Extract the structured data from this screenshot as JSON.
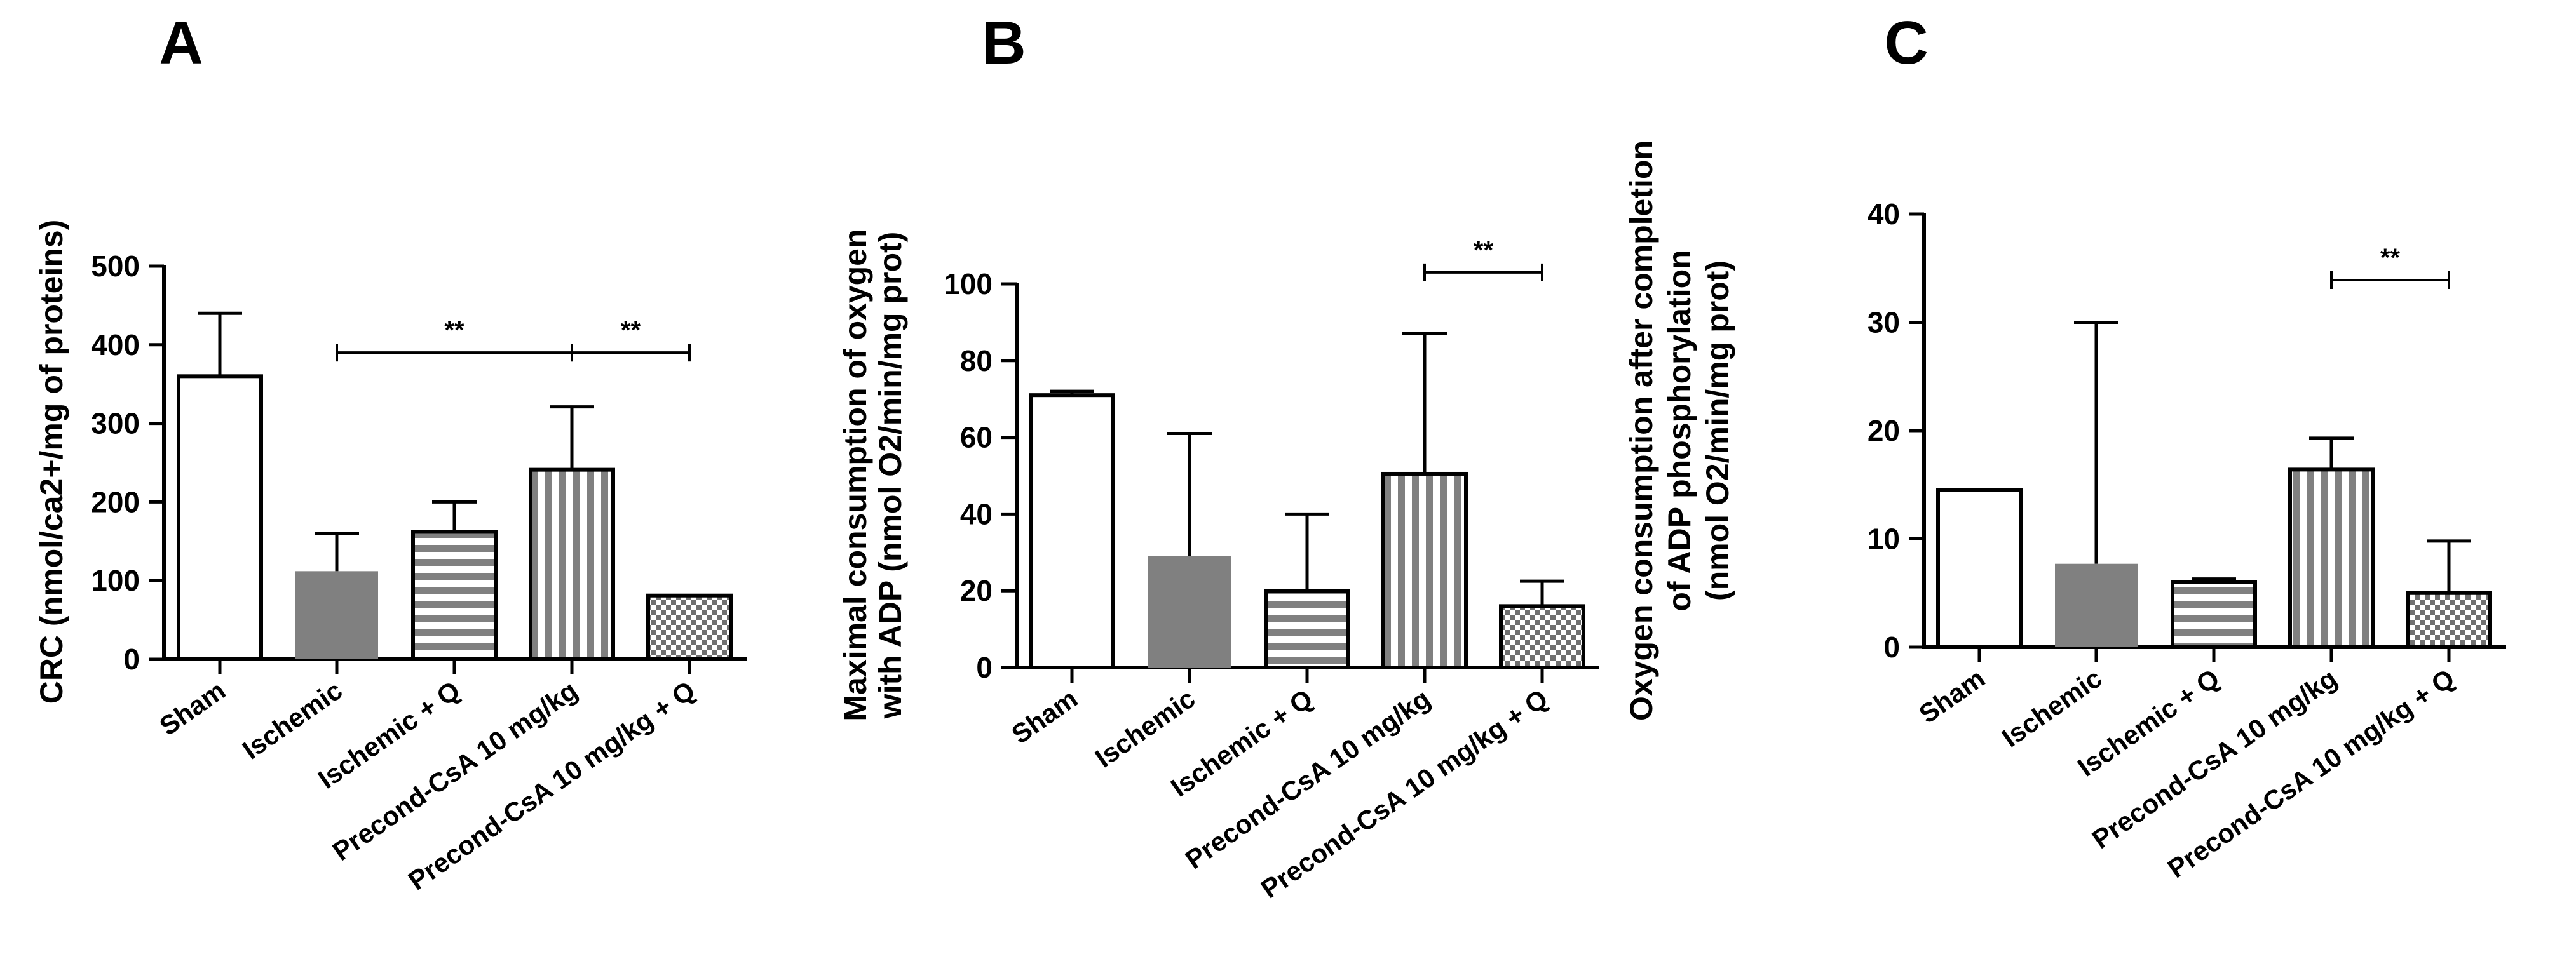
{
  "colors": {
    "axis": "#000000",
    "filled": "#808080",
    "white": "#ffffff"
  },
  "chart_data": [
    {
      "type": "bar",
      "panel_label": "A",
      "ylabel_lines": [
        "CRC (nmol/ca2+/mg of proteins)"
      ],
      "ylim": [
        0,
        500
      ],
      "yticks": [
        0,
        100,
        200,
        300,
        400,
        500
      ],
      "categories": [
        "Sham",
        "Ischemic",
        "Ischemic + Q",
        "Precond-CsA 10 mg/kg",
        "Precond-CsA 10 mg/kg + Q"
      ],
      "values": [
        360,
        112,
        162,
        241,
        81
      ],
      "errors": [
        80,
        48,
        38,
        80,
        0
      ],
      "patterns": [
        "open",
        "filled",
        "hstripes",
        "vstripes",
        "checker"
      ],
      "significance": [
        {
          "from": 1,
          "to": 3,
          "y": 390,
          "label": "**"
        },
        {
          "from": 3,
          "to": 4,
          "y": 390,
          "label": "**"
        }
      ]
    },
    {
      "type": "bar",
      "panel_label": "B",
      "ylabel_lines": [
        "Maximal consumption of oxygen",
        "with ADP (nmol O2/min/mg prot)"
      ],
      "ylim": [
        0,
        100
      ],
      "yticks": [
        0,
        20,
        40,
        60,
        80,
        100
      ],
      "categories": [
        "Sham",
        "Ischemic",
        "Ischemic + Q",
        "Precond-CsA 10 mg/kg",
        "Precond-CsA 10 mg/kg + Q"
      ],
      "values": [
        71,
        29,
        20,
        50.5,
        16
      ],
      "errors": [
        1,
        32,
        20,
        36.5,
        6.5
      ],
      "patterns": [
        "open",
        "filled",
        "hstripes",
        "vstripes",
        "checker"
      ],
      "significance": [
        {
          "from": 3,
          "to": 4,
          "y": 103,
          "label": "**"
        }
      ]
    },
    {
      "type": "bar",
      "panel_label": "C",
      "ylabel_lines": [
        "Oxygen consumption after completion",
        "of ADP phosphorylation",
        "(nmol O2/min/mg prot)"
      ],
      "ylim": [
        0,
        40
      ],
      "yticks": [
        0,
        10,
        20,
        30,
        40
      ],
      "categories": [
        "Sham",
        "Ischemic",
        "Ischemic + Q",
        "Precond-CsA 10 mg/kg",
        "Precond-CsA 10 mg/kg + Q"
      ],
      "values": [
        14.5,
        7.7,
        6,
        16.4,
        5
      ],
      "errors": [
        0,
        22.3,
        0.3,
        2.9,
        4.8
      ],
      "patterns": [
        "open",
        "filled",
        "hstripes",
        "vstripes",
        "checker"
      ],
      "significance": [
        {
          "from": 3,
          "to": 4,
          "y": 33.9,
          "label": "**"
        }
      ]
    }
  ]
}
